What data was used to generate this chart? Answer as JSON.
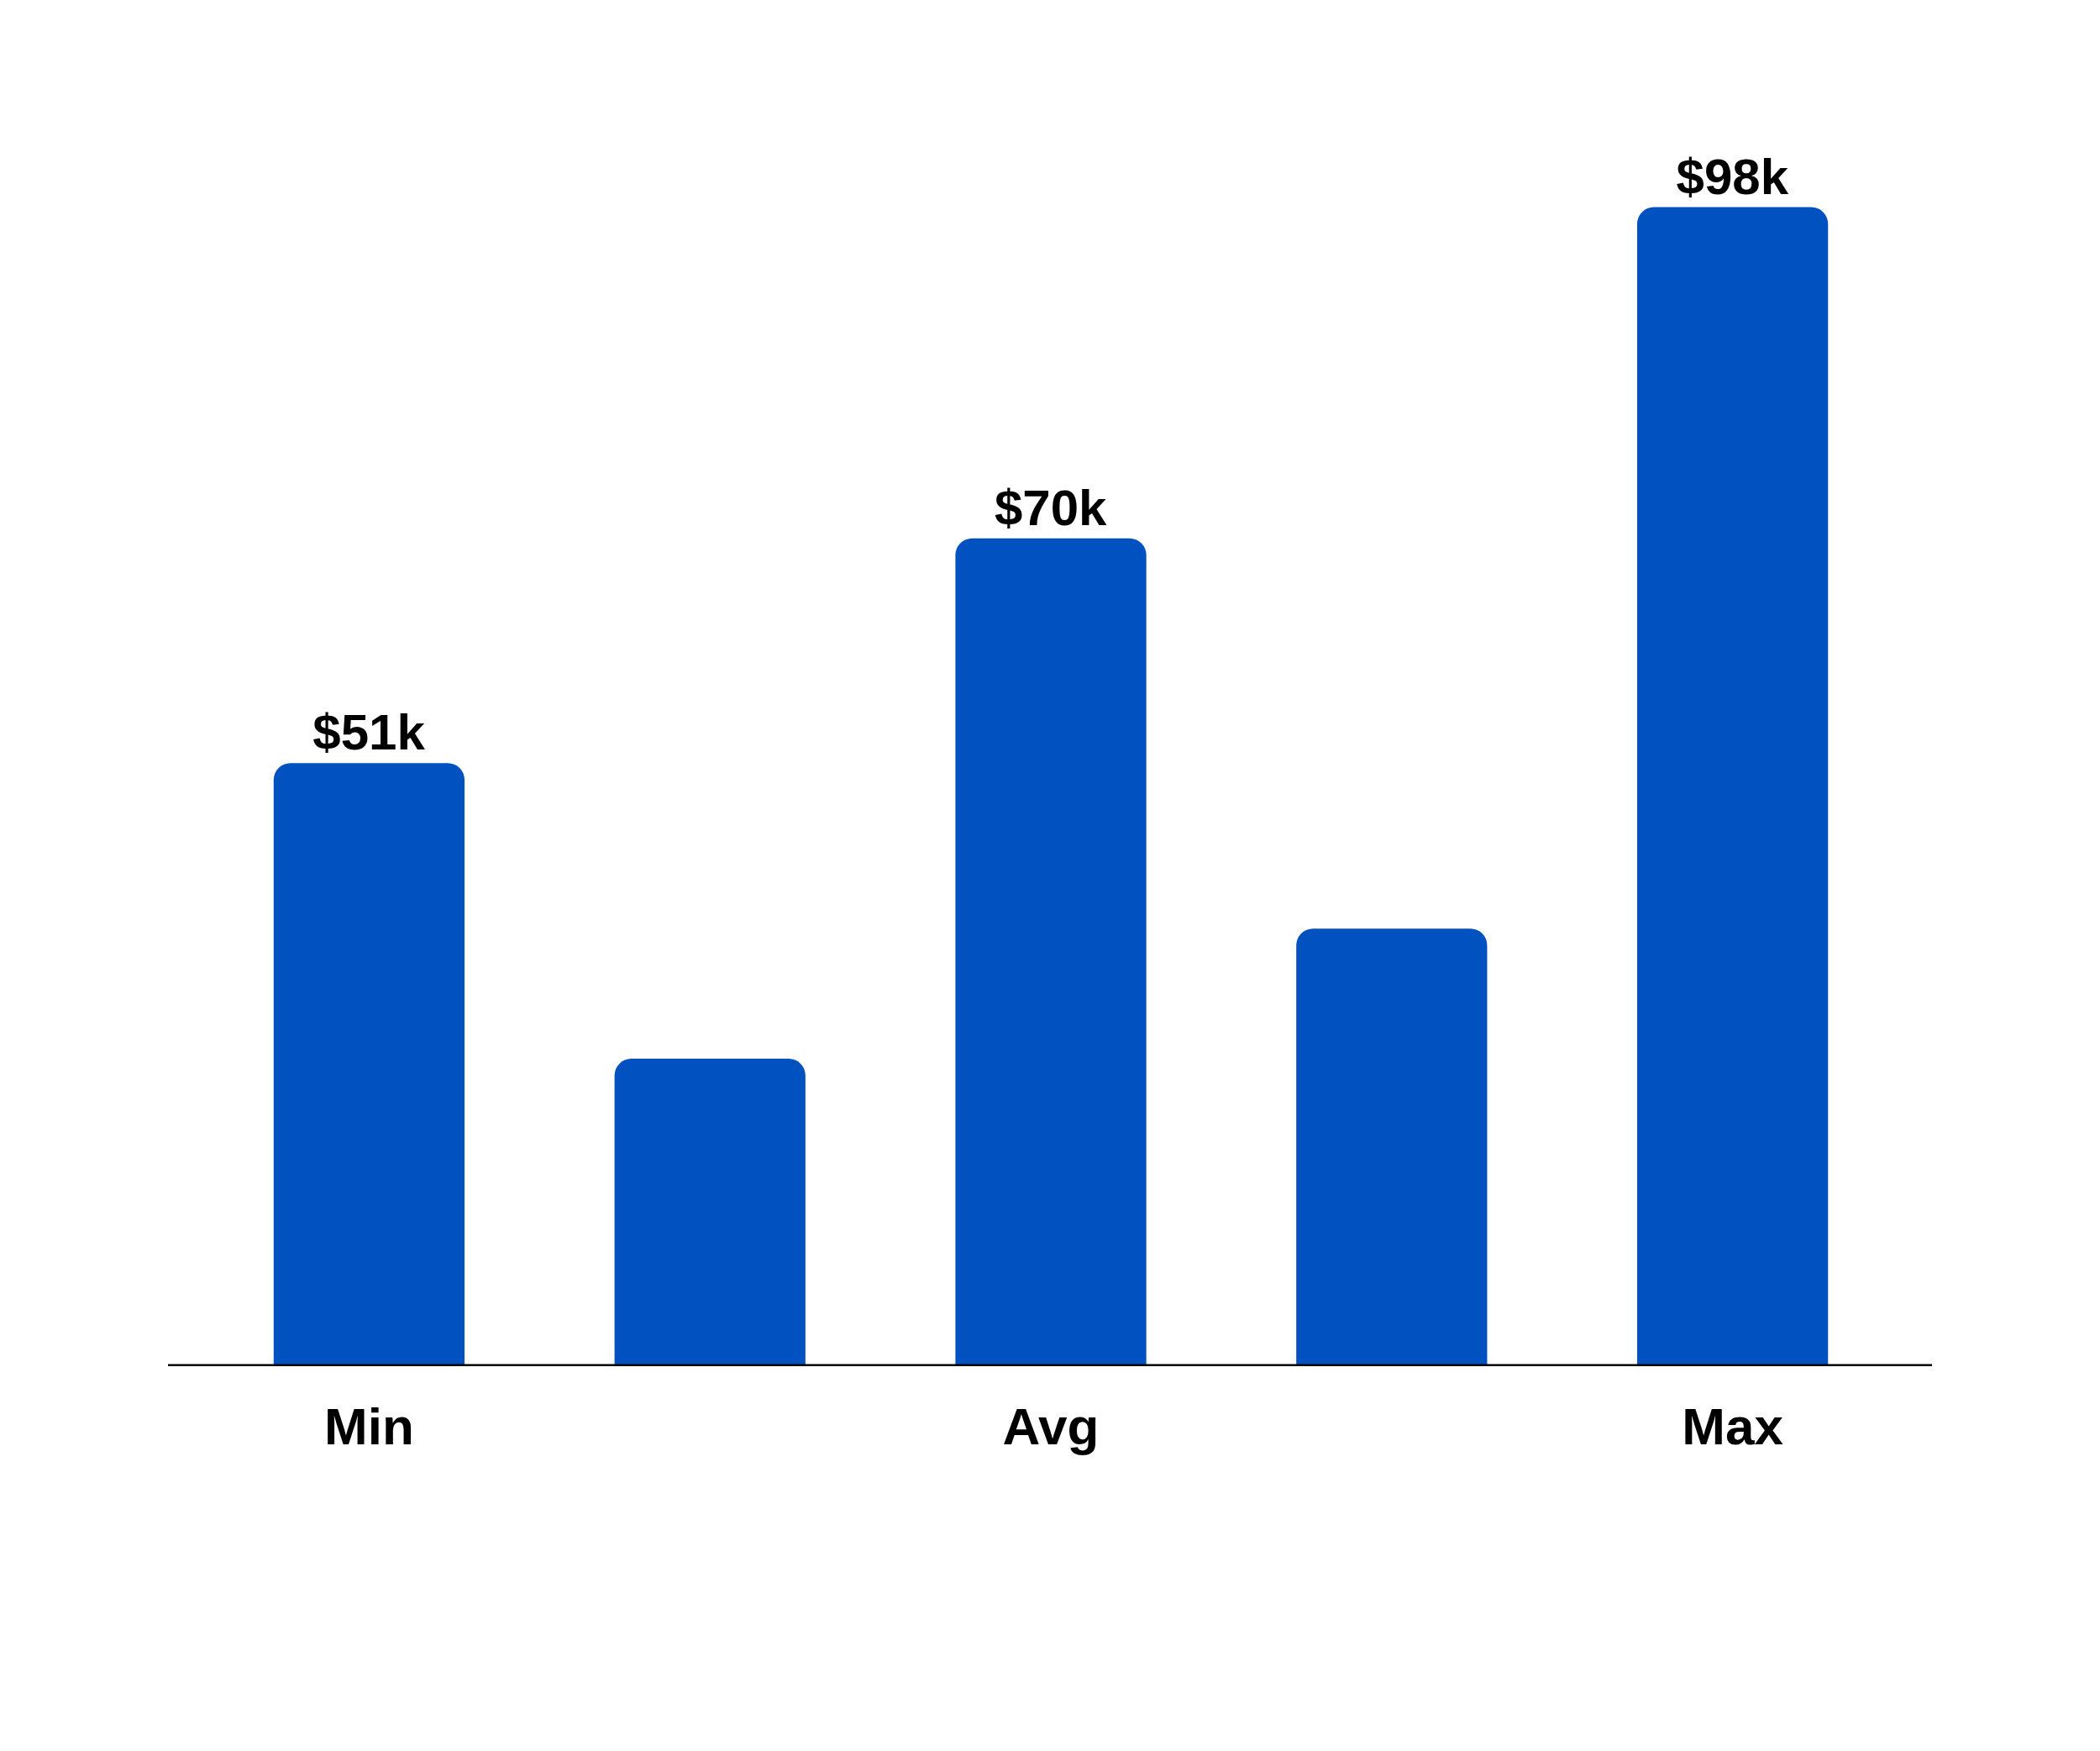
{
  "chart_data": {
    "type": "bar",
    "categories": [
      "Min",
      null,
      "Avg",
      null,
      "Max"
    ],
    "values": [
      51,
      26,
      70,
      37,
      98
    ],
    "value_labels": [
      "$51k",
      null,
      "$70k",
      null,
      "$98k"
    ],
    "color": "#0251c1",
    "tick_labels": "x"
  }
}
